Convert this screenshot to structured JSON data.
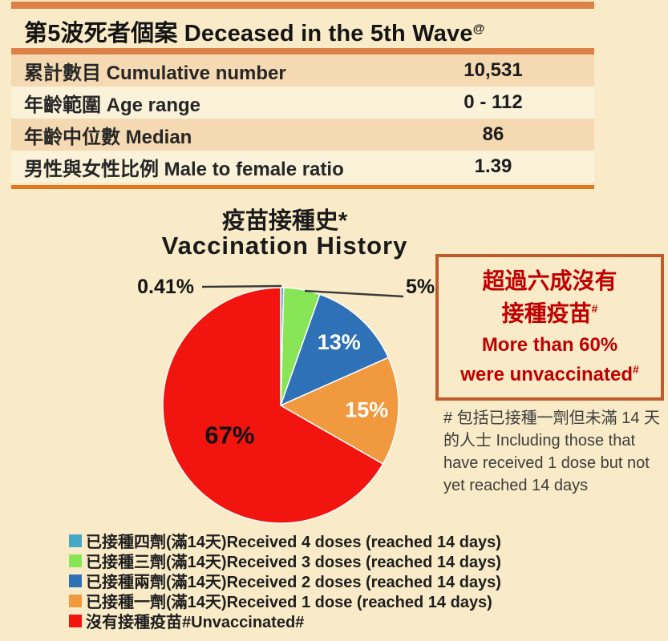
{
  "header": {
    "title": "第5波死者個案 Deceased in the 5th Wave",
    "title_sup": "@"
  },
  "stats_table": {
    "rows": [
      {
        "label": "累計數目 Cumulative number",
        "value": "10,531",
        "shaded": true
      },
      {
        "label": "年齡範圍 Age range",
        "value": "0 - 112",
        "shaded": false
      },
      {
        "label": "年齡中位數 Median",
        "value": "86",
        "shaded": true
      },
      {
        "label": "男性與女性比例 Male to female ratio",
        "value": "1.39",
        "shaded": false
      }
    ]
  },
  "chart": {
    "title_zh": "疫苗接種史*",
    "title_en": "Vaccination History"
  },
  "chart_data": {
    "type": "pie",
    "title": "疫苗接種史* Vaccination History",
    "direction": "clockwise",
    "start_angle_deg": 0,
    "legend_position": "bottom-left",
    "slices": [
      {
        "label_zh": "已接種四劑(滿14天)",
        "label_en": "Received 4 doses (reached 14 days)",
        "value": 0.41,
        "display": "0.41%",
        "color": "#46A7C6",
        "label_placement": "outside"
      },
      {
        "label_zh": "已接種三劑(滿14天)",
        "label_en": "Received 3 doses (reached 14 days)",
        "value": 5,
        "display": "5%",
        "color": "#87E556",
        "label_placement": "outside"
      },
      {
        "label_zh": "已接種兩劑(滿14天)",
        "label_en": "Received 2 doses (reached 14 days)",
        "value": 13,
        "display": "13%",
        "color": "#2E71B6",
        "label_placement": "inside"
      },
      {
        "label_zh": "已接種一劑(滿14天)",
        "label_en": "Received 1 dose (reached 14 days)",
        "value": 15,
        "display": "15%",
        "color": "#F0993F",
        "label_placement": "inside"
      },
      {
        "label_zh": "沒有接種疫苗#",
        "label_en": "Unvaccinated#",
        "value": 67,
        "display": "67%",
        "color": "#F2150F",
        "label_placement": "inside"
      }
    ]
  },
  "callout": {
    "line1_zh": "超過六成沒有",
    "line2_zh": "接種疫苗",
    "zh_sup": "#",
    "line1_en": "More than 60%",
    "line2_en": "were unvaccinated",
    "en_sup": "#",
    "text_color": "#C00000",
    "border_color": "#BE5C2B"
  },
  "footnote": {
    "text": "# 包括已接種一劑但未滿 14 天的人士  Including those that have received 1 dose but not yet reached 14 days"
  },
  "colors": {
    "page_bg": "#F9EBC7",
    "shaded_row": "#F4D9B3",
    "light_row": "#FBF2DA",
    "orange_bar": "#DD8149",
    "orange_rule": "#E2771F"
  }
}
